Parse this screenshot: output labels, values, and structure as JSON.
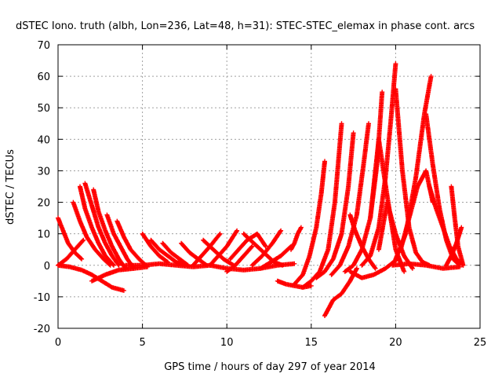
{
  "chart_data": {
    "type": "scatter",
    "title": "dSTEC Iono. truth (albh, Lon=236, Lat=48, h=31): STEC-STEC_elemax in phase cont. arcs",
    "xlabel": "GPS time / hours of day 297 of year 2014",
    "ylabel": "dSTEC  / TECUs",
    "xlim": [
      0,
      25
    ],
    "ylim": [
      -20,
      70
    ],
    "xticks": [
      0,
      5,
      10,
      15,
      20,
      25
    ],
    "yticks": [
      -20,
      -10,
      0,
      10,
      20,
      30,
      40,
      50,
      60,
      70
    ],
    "xtick_labels": [
      "0",
      "5",
      "10",
      "15",
      "20",
      "25"
    ],
    "ytick_labels": [
      "-20",
      "-10",
      "0",
      "10",
      "20",
      "30",
      "40",
      "50",
      "60",
      "70"
    ],
    "grid": true,
    "marker": "+",
    "series_color": "#ff0000",
    "series": [
      {
        "x": [
          0.0,
          0.3,
          0.6,
          1.0,
          1.4
        ],
        "y": [
          15,
          11,
          7,
          4,
          2
        ]
      },
      {
        "x": [
          0.0,
          0.5,
          1.0,
          1.5
        ],
        "y": [
          0,
          2,
          5,
          8
        ]
      },
      {
        "x": [
          0.0,
          0.7,
          1.4,
          2.0,
          2.6,
          3.2,
          3.9
        ],
        "y": [
          0,
          -0.5,
          -1.5,
          -3,
          -5,
          -7,
          -8
        ]
      },
      {
        "x": [
          0.9,
          1.3,
          1.7,
          2.2,
          2.7,
          3.1
        ],
        "y": [
          20,
          14,
          9,
          5,
          2,
          0
        ]
      },
      {
        "x": [
          1.3,
          1.6,
          2.0,
          2.4,
          2.8,
          3.3
        ],
        "y": [
          25,
          18,
          12,
          7,
          3,
          0
        ]
      },
      {
        "x": [
          1.6,
          2.0,
          2.4,
          2.8,
          3.2,
          3.6
        ],
        "y": [
          26,
          19,
          12,
          7,
          3,
          0
        ]
      },
      {
        "x": [
          2.1,
          2.4,
          2.8,
          3.2,
          3.6,
          4.0
        ],
        "y": [
          24,
          17,
          11,
          6,
          2,
          -1
        ]
      },
      {
        "x": [
          2.9,
          3.3,
          3.7,
          4.1,
          4.5
        ],
        "y": [
          16,
          10,
          6,
          2,
          -1
        ]
      },
      {
        "x": [
          3.5,
          3.9,
          4.3,
          4.8,
          5.2
        ],
        "y": [
          14,
          9,
          5,
          2,
          0
        ]
      },
      {
        "x": [
          2.0,
          2.8,
          3.6,
          4.5,
          5.3
        ],
        "y": [
          -5,
          -3,
          -1.5,
          -1,
          -0.5
        ]
      },
      {
        "x": [
          5.0,
          5.5,
          6.0,
          6.5
        ],
        "y": [
          10,
          6,
          3,
          1
        ]
      },
      {
        "x": [
          5.5,
          6.0,
          6.5,
          7.0,
          7.5
        ],
        "y": [
          8,
          5,
          3,
          1,
          0
        ]
      },
      {
        "x": [
          6.2,
          6.7,
          7.2,
          7.7
        ],
        "y": [
          7,
          4,
          2,
          0
        ]
      },
      {
        "x": [
          4.0,
          5.0,
          6.0,
          7.0,
          8.0,
          9.0
        ],
        "y": [
          0,
          0,
          0.5,
          0,
          -0.5,
          0
        ]
      },
      {
        "x": [
          7.3,
          7.8,
          8.3,
          8.8
        ],
        "y": [
          7,
          4,
          2,
          0
        ]
      },
      {
        "x": [
          8.0,
          8.5,
          9.0,
          9.6
        ],
        "y": [
          0,
          3,
          6,
          10
        ]
      },
      {
        "x": [
          8.6,
          9.2,
          9.8,
          10.4
        ],
        "y": [
          8,
          5,
          2,
          0
        ]
      },
      {
        "x": [
          9.0,
          9.5,
          10.0,
          10.6
        ],
        "y": [
          0,
          3,
          6,
          11
        ]
      },
      {
        "x": [
          10.0,
          10.5,
          11.0,
          11.5
        ],
        "y": [
          -2,
          0,
          3,
          6
        ]
      },
      {
        "x": [
          10.2,
          10.7,
          11.2,
          11.8,
          12.3
        ],
        "y": [
          2,
          5,
          8,
          10,
          6
        ]
      },
      {
        "x": [
          11.0,
          11.6,
          12.2,
          12.8,
          13.3
        ],
        "y": [
          10,
          7,
          4,
          1,
          0
        ]
      },
      {
        "x": [
          11.5,
          12.1,
          12.7,
          13.2
        ],
        "y": [
          0,
          3,
          7,
          11
        ]
      },
      {
        "x": [
          12.0,
          12.6,
          13.2,
          13.8
        ],
        "y": [
          -1,
          1,
          3,
          6
        ]
      },
      {
        "x": [
          9.0,
          10.0,
          11.0,
          12.0,
          13.0,
          14.0
        ],
        "y": [
          0,
          -1,
          -1.5,
          -1,
          0,
          0.5
        ]
      },
      {
        "x": [
          13.8,
          14.0,
          14.2,
          14.4
        ],
        "y": [
          5,
          7,
          10,
          12
        ]
      },
      {
        "x": [
          13.0,
          13.5,
          14.0,
          14.5,
          15.0
        ],
        "y": [
          -5,
          -6,
          -6.5,
          -7,
          -6.5
        ]
      },
      {
        "x": [
          14.0,
          14.5,
          14.9,
          15.3,
          15.6,
          15.8
        ],
        "y": [
          -6,
          -3,
          3,
          12,
          23,
          33
        ]
      },
      {
        "x": [
          14.5,
          15.0,
          15.5,
          16.0,
          16.4,
          16.8
        ],
        "y": [
          -7,
          -5,
          -2,
          5,
          20,
          45
        ]
      },
      {
        "x": [
          15.3,
          15.8,
          16.3,
          16.8,
          17.2,
          17.5
        ],
        "y": [
          -4,
          -2,
          2,
          10,
          25,
          42
        ]
      },
      {
        "x": [
          15.8,
          16.3,
          16.8,
          17.3,
          17.7
        ],
        "y": [
          -16,
          -11,
          -9,
          -5,
          -1
        ]
      },
      {
        "x": [
          16.2,
          16.7,
          17.2,
          17.7,
          18.1,
          18.4
        ],
        "y": [
          -3,
          0,
          6,
          16,
          32,
          45
        ]
      },
      {
        "x": [
          17.0,
          17.5,
          18.0,
          18.5,
          18.9,
          19.2
        ],
        "y": [
          -2,
          0,
          5,
          15,
          32,
          55
        ]
      },
      {
        "x": [
          17.3,
          17.6,
          18.0,
          18.4,
          18.8
        ],
        "y": [
          16,
          11,
          6,
          2,
          -1
        ]
      },
      {
        "x": [
          17.3,
          18.0,
          18.7,
          19.4,
          20.1
        ],
        "y": [
          -2,
          -4,
          -3,
          -1,
          2
        ]
      },
      {
        "x": [
          18.0,
          18.5,
          19.0,
          19.4,
          19.7,
          20.0
        ],
        "y": [
          0,
          3,
          12,
          28,
          45,
          64
        ]
      },
      {
        "x": [
          18.5,
          19.0,
          19.5,
          20.0,
          20.5
        ],
        "y": [
          15,
          40,
          22,
          5,
          -2
        ]
      },
      {
        "x": [
          19.0,
          19.5,
          20.0,
          20.5,
          21.0
        ],
        "y": [
          5,
          20,
          10,
          3,
          -1
        ]
      },
      {
        "x": [
          20.0,
          20.4,
          20.8,
          21.2,
          21.6,
          22.0
        ],
        "y": [
          56,
          30,
          12,
          4,
          1,
          0
        ]
      },
      {
        "x": [
          20.0,
          20.6,
          21.2,
          21.7,
          22.1
        ],
        "y": [
          2,
          10,
          28,
          48,
          60
        ]
      },
      {
        "x": [
          20.3,
          20.8,
          21.3,
          21.8,
          22.2
        ],
        "y": [
          5,
          15,
          25,
          30,
          20
        ]
      },
      {
        "x": [
          21.8,
          22.2,
          22.6,
          23.0,
          23.4,
          23.8
        ],
        "y": [
          48,
          32,
          18,
          8,
          2,
          0
        ]
      },
      {
        "x": [
          22.0,
          22.4,
          22.8,
          23.2,
          23.6,
          24.0
        ],
        "y": [
          25,
          18,
          12,
          6,
          2,
          0
        ]
      },
      {
        "x": [
          23.0,
          23.3,
          23.6,
          23.9
        ],
        "y": [
          0,
          3,
          7,
          12
        ]
      },
      {
        "x": [
          23.3,
          23.5,
          23.7,
          24.0
        ],
        "y": [
          25,
          15,
          6,
          0
        ]
      },
      {
        "x": [
          19.8,
          20.8,
          21.8,
          22.8,
          23.8
        ],
        "y": [
          0,
          0.5,
          0,
          -1,
          -0.5
        ]
      }
    ]
  }
}
